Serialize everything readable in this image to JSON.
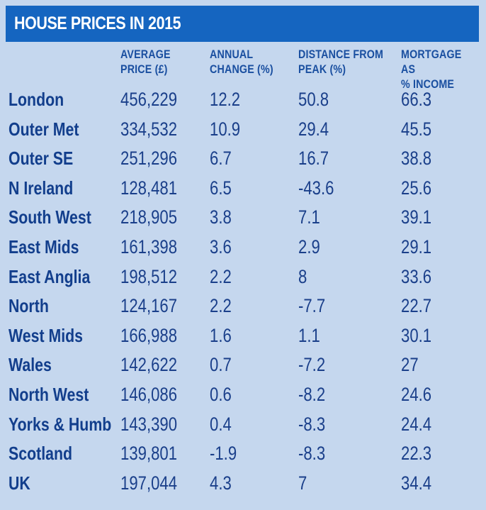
{
  "title": "HOUSE PRICES IN 2015",
  "headers": {
    "price": "AVERAGE\nPRICE (£)",
    "change": "ANNUAL\nCHANGE (%)",
    "peak": "DISTANCE FROM\nPEAK (%)",
    "mortgage": "MORTGAGE AS\n% INCOME"
  },
  "colors": {
    "background": "#c5d7ee",
    "title_bar": "#1565c0",
    "title_text": "#ffffff",
    "text": "#123e8c"
  },
  "chart_data": {
    "type": "table",
    "title": "HOUSE PRICES IN 2015",
    "columns": [
      "",
      "AVERAGE PRICE (£)",
      "ANNUAL CHANGE (%)",
      "DISTANCE FROM PEAK (%)",
      "MORTGAGE AS % INCOME"
    ],
    "rows": [
      {
        "region": "London",
        "price": "456,229",
        "change": "12.2",
        "peak": "50.8",
        "mortgage": "66.3"
      },
      {
        "region": "Outer Met",
        "price": "334,532",
        "change": "10.9",
        "peak": "29.4",
        "mortgage": "45.5"
      },
      {
        "region": "Outer SE",
        "price": "251,296",
        "change": "6.7",
        "peak": "16.7",
        "mortgage": "38.8"
      },
      {
        "region": "N Ireland",
        "price": "128,481",
        "change": "6.5",
        "peak": "-43.6",
        "mortgage": "25.6"
      },
      {
        "region": "South West",
        "price": "218,905",
        "change": "3.8",
        "peak": "7.1",
        "mortgage": "39.1"
      },
      {
        "region": "East Mids",
        "price": "161,398",
        "change": "3.6",
        "peak": "2.9",
        "mortgage": "29.1"
      },
      {
        "region": "East Anglia",
        "price": "198,512",
        "change": "2.2",
        "peak": "8",
        "mortgage": "33.6"
      },
      {
        "region": "North",
        "price": "124,167",
        "change": "2.2",
        "peak": "-7.7",
        "mortgage": "22.7"
      },
      {
        "region": "West Mids",
        "price": "166,988",
        "change": "1.6",
        "peak": "1.1",
        "mortgage": "30.1"
      },
      {
        "region": "Wales",
        "price": "142,622",
        "change": "0.7",
        "peak": "-7.2",
        "mortgage": "27"
      },
      {
        "region": "North West",
        "price": "146,086",
        "change": "0.6",
        "peak": "-8.2",
        "mortgage": "24.6"
      },
      {
        "region": "Yorks & Humb",
        "price": "143,390",
        "change": "0.4",
        "peak": "-8.3",
        "mortgage": "24.4"
      },
      {
        "region": "Scotland",
        "price": "139,801",
        "change": "-1.9",
        "peak": "-8.3",
        "mortgage": "22.3"
      },
      {
        "region": "UK",
        "price": "197,044",
        "change": "4.3",
        "peak": "7",
        "mortgage": "34.4"
      }
    ]
  }
}
